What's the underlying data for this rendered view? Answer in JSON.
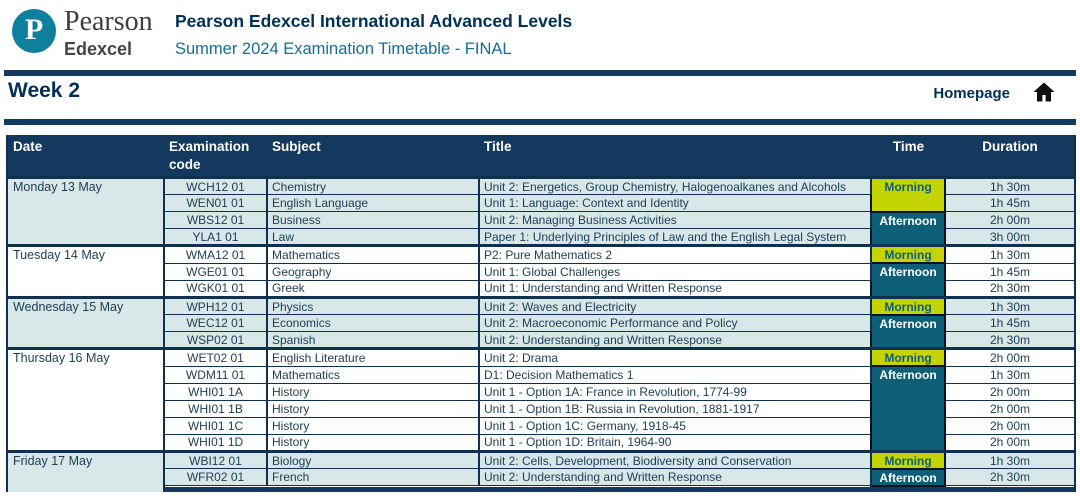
{
  "header": {
    "logo": {
      "letter": "P",
      "brand": "Pearson",
      "sub": "Edexcel"
    },
    "title": "Pearson Edexcel International Advanced Levels",
    "subtitle": "Summer 2024 Examination Timetable - FINAL"
  },
  "section": {
    "week_label": "Week 2",
    "homepage_label": "Homepage"
  },
  "colors": {
    "navy": "#14395e",
    "light_row": "#d8e8e9",
    "morning_bg": "#c4d400",
    "morning_text": "#0d5e76",
    "afternoon_bg": "#0d5f78",
    "afternoon_text": "#ffffff",
    "logo_teal": "#0e7f9d",
    "title_navy": "#003057",
    "subtitle_teal": "#176d96"
  },
  "table": {
    "columns": [
      "Date",
      "Examination code",
      "Subject",
      "Title",
      "Time",
      "Duration"
    ],
    "days": [
      {
        "date": "Monday 13 May",
        "shaded": true,
        "rows": [
          {
            "code": "WCH12 01",
            "subject": "Chemistry",
            "title": "Unit 2: Energetics, Group Chemistry, Halogenoalkanes and Alcohols",
            "duration": "1h 30m"
          },
          {
            "code": "WEN01 01",
            "subject": "English Language",
            "title": "Unit 1: Language: Context and Identity",
            "duration": "1h 45m"
          },
          {
            "code": "WBS12 01",
            "subject": "Business",
            "title": "Unit 2: Managing Business Activities",
            "duration": "2h 00m"
          },
          {
            "code": "YLA1 01",
            "subject": "Law",
            "title": "Paper 1: Underlying Principles of Law and the English Legal System",
            "duration": "3h 00m"
          }
        ],
        "time_blocks": [
          {
            "label": "Morning",
            "type": "morning",
            "span": 2
          },
          {
            "label": "Afternoon",
            "type": "afternoon",
            "span": 2
          }
        ]
      },
      {
        "date": "Tuesday 14 May",
        "shaded": false,
        "rows": [
          {
            "code": "WMA12 01",
            "subject": "Mathematics",
            "title": "P2: Pure Mathematics 2",
            "duration": "1h 30m"
          },
          {
            "code": "WGE01 01",
            "subject": "Geography",
            "title": "Unit 1: Global Challenges",
            "duration": "1h 45m"
          },
          {
            "code": "WGK01 01",
            "subject": "Greek",
            "title": "Unit 1: Understanding and Written Response",
            "duration": "2h 30m"
          }
        ],
        "time_blocks": [
          {
            "label": "Morning",
            "type": "morning",
            "span": 1
          },
          {
            "label": "Afternoon",
            "type": "afternoon",
            "span": 2
          }
        ]
      },
      {
        "date": "Wednesday 15 May",
        "shaded": true,
        "rows": [
          {
            "code": "WPH12 01",
            "subject": "Physics",
            "title": "Unit 2: Waves and Electricity",
            "duration": "1h 30m"
          },
          {
            "code": "WEC12 01",
            "subject": "Economics",
            "title": "Unit 2: Macroeconomic Performance and Policy",
            "duration": "1h 45m"
          },
          {
            "code": "WSP02 01",
            "subject": "Spanish",
            "title": "Unit 2: Understanding and Written Response",
            "duration": "2h 30m"
          }
        ],
        "time_blocks": [
          {
            "label": "Morning",
            "type": "morning",
            "span": 1
          },
          {
            "label": "Afternoon",
            "type": "afternoon",
            "span": 2
          }
        ]
      },
      {
        "date": "Thursday 16 May",
        "shaded": false,
        "rows": [
          {
            "code": "WET02 01",
            "subject": "English Literature",
            "title": "Unit 2: Drama",
            "duration": "2h 00m"
          },
          {
            "code": "WDM11 01",
            "subject": "Mathematics",
            "title": "D1: Decision Mathematics 1",
            "duration": "1h 30m"
          },
          {
            "code": "WHI01 1A",
            "subject": "History",
            "title": "Unit 1 - Option 1A: France in Revolution, 1774-99",
            "duration": "2h 00m"
          },
          {
            "code": "WHI01 1B",
            "subject": "History",
            "title": "Unit 1 - Option 1B: Russia in Revolution, 1881-1917",
            "duration": "2h 00m"
          },
          {
            "code": "WHI01 1C",
            "subject": "History",
            "title": "Unit 1 - Option 1C: Germany, 1918-45",
            "duration": "2h 00m"
          },
          {
            "code": "WHI01 1D",
            "subject": "History",
            "title": "Unit 1 - Option 1D: Britain, 1964-90",
            "duration": "2h 00m"
          }
        ],
        "time_blocks": [
          {
            "label": "Morning",
            "type": "morning",
            "span": 1
          },
          {
            "label": "Afternoon",
            "type": "afternoon",
            "span": 5
          }
        ]
      },
      {
        "date": "Friday 17 May",
        "shaded": true,
        "rows": [
          {
            "code": "WBI12 01",
            "subject": "Biology",
            "title": "Unit 2: Cells, Development, Biodiversity and Conservation",
            "duration": "1h 30m"
          },
          {
            "code": "WFR02 01",
            "subject": "French",
            "title": "Unit 2: Understanding and Written Response",
            "duration": "2h 30m"
          }
        ],
        "time_blocks": [
          {
            "label": "Morning",
            "type": "morning",
            "span": 1
          },
          {
            "label": "Afternoon",
            "type": "afternoon",
            "span": 1
          }
        ]
      }
    ]
  }
}
